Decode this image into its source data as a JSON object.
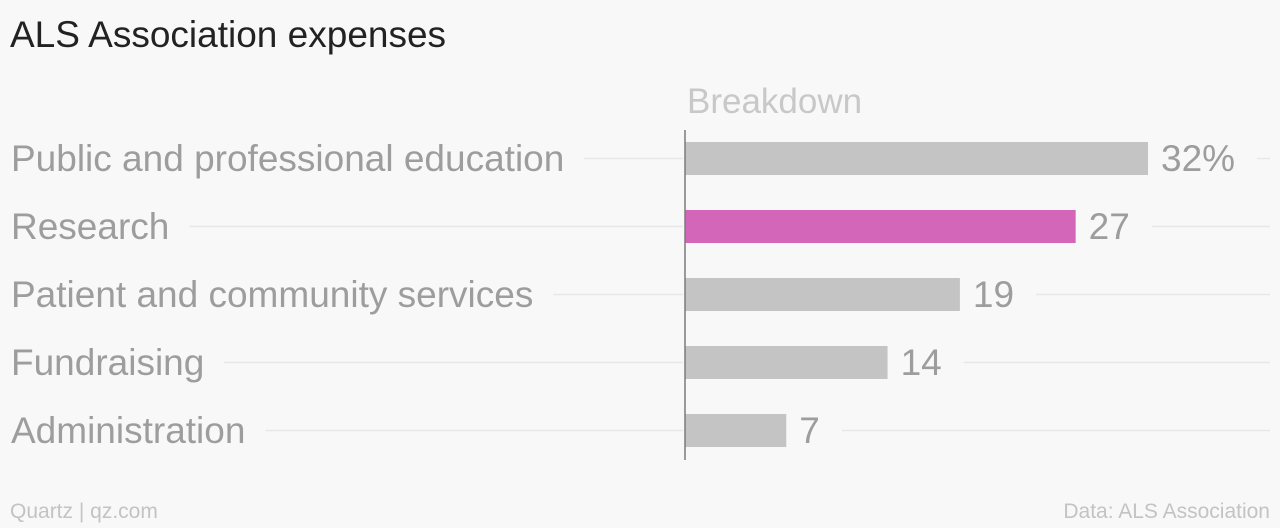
{
  "title": "ALS Association expenses",
  "chart_data": {
    "type": "bar",
    "orientation": "horizontal",
    "title": "ALS Association expenses",
    "series": [
      {
        "name": "Breakdown",
        "values": [
          32,
          27,
          19,
          14,
          7
        ]
      }
    ],
    "categories": [
      "Public and professional education",
      "Research",
      "Patient and community services",
      "Fundraising",
      "Administration"
    ],
    "value_labels": [
      "32%",
      "27",
      "19",
      "14",
      "7"
    ],
    "highlight_index": 1,
    "xlim": [
      0,
      32
    ],
    "grid": false,
    "colors": {
      "bar": "#c4c4c4",
      "highlight": "#d366b9",
      "text": "#9d9d9d",
      "leader": "#e7e7e7",
      "axis": "#7a7a7a"
    }
  },
  "footer": {
    "source_left": "Quartz | qz.com",
    "source_right": "Data: ALS Association"
  }
}
